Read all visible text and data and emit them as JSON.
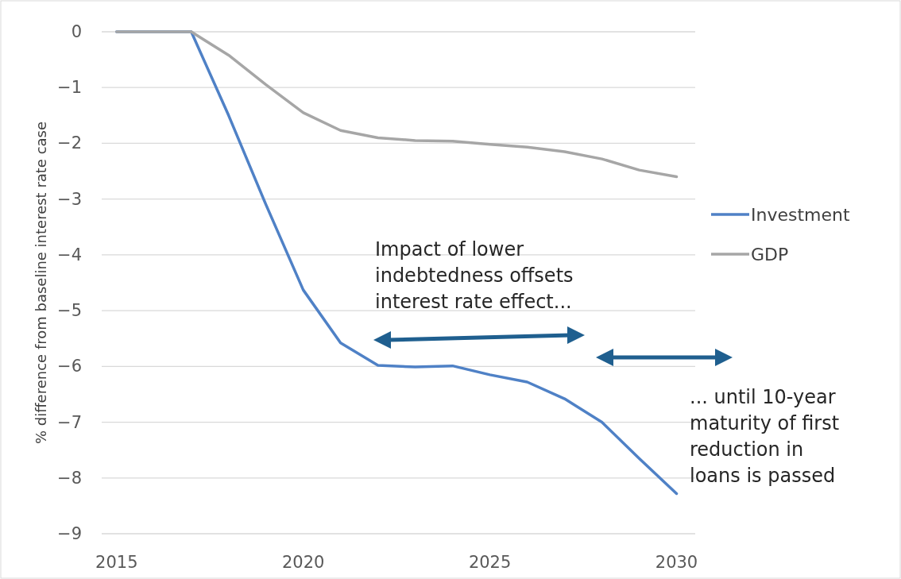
{
  "chart_data": {
    "type": "line",
    "ylabel": "% difference from baseline interest rate case",
    "x": [
      2015,
      2016,
      2017,
      2018,
      2019,
      2020,
      2021,
      2022,
      2023,
      2024,
      2025,
      2026,
      2027,
      2028,
      2029,
      2030
    ],
    "series": [
      {
        "name": "Investment",
        "color": "#4f81c6",
        "values": [
          0,
          0,
          0,
          -1.5,
          -3.1,
          -4.63,
          -5.58,
          -5.98,
          -6.01,
          -5.99,
          -6.15,
          -6.28,
          -6.58,
          -7.0,
          -7.65,
          -8.28
        ]
      },
      {
        "name": "GDP",
        "color": "#a6a6a6",
        "values": [
          0,
          0,
          0,
          -0.42,
          -0.95,
          -1.45,
          -1.77,
          -1.9,
          -1.95,
          -1.96,
          -2.02,
          -2.07,
          -2.15,
          -2.28,
          -2.48,
          -2.6
        ]
      }
    ],
    "xlim": [
      2014.6,
      2030.5
    ],
    "xticks": [
      2015,
      2020,
      2025,
      2030
    ],
    "ylim": [
      -9,
      0
    ],
    "yticks": [
      -9,
      -8,
      -7,
      -6,
      -5,
      -4,
      -3,
      -2,
      -1,
      0
    ],
    "grid": "y",
    "legend": "right",
    "marker": "none",
    "line_style": "solid",
    "annotations": [
      "Impact of lower\nindebtedness offsets\ninterest rate effect...",
      "... until 10-year\nmaturity of first\nreduction in\nloans is passed"
    ]
  }
}
